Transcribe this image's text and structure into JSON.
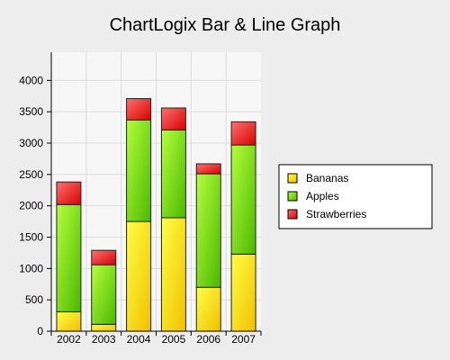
{
  "chart_data": {
    "type": "bar",
    "stacked": true,
    "title": "ChartLogix Bar & Line Graph",
    "categories": [
      "2002",
      "2003",
      "2004",
      "2005",
      "2006",
      "2007"
    ],
    "series": [
      {
        "name": "Bananas",
        "color": "#ffe600",
        "values": [
          310,
          110,
          1750,
          1810,
          700,
          1230
        ]
      },
      {
        "name": "Apples",
        "color": "#7ee000",
        "values": [
          1710,
          950,
          1620,
          1400,
          1810,
          1740
        ]
      },
      {
        "name": "Strawberries",
        "color": "#ff2a2a",
        "values": [
          360,
          230,
          340,
          350,
          160,
          370
        ]
      }
    ],
    "ylim": [
      0,
      4450
    ],
    "yticks": [
      0,
      500,
      1000,
      1500,
      2000,
      2500,
      3000,
      3500,
      4000
    ],
    "grid": true,
    "legend_position": "right"
  }
}
